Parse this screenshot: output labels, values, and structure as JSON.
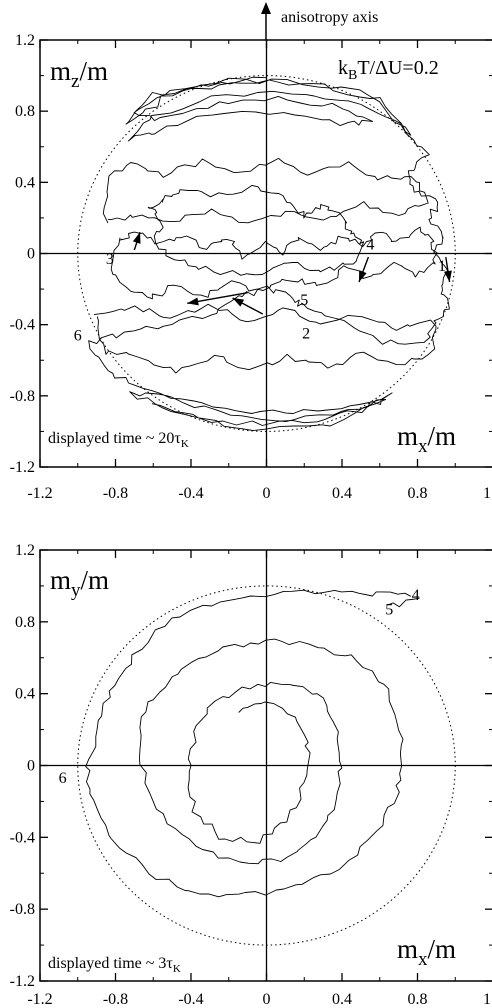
{
  "chart_data": [
    {
      "type": "line",
      "axis_label": "anisotropy axis",
      "ylabel_main": "m",
      "ylabel_sub": "z",
      "ylabel_tail": "/m",
      "xlabel_main": "m",
      "xlabel_sub": "x",
      "xlabel_tail": "/m",
      "param_k": "k",
      "param_sub": "B",
      "param_tail": "T/ΔU=0.2",
      "time_text": "displayed time ~ 20τ",
      "time_sub": "K",
      "xlim": [
        -1.2,
        1.2
      ],
      "ylim": [
        -1.2,
        1.2
      ],
      "x_ticks": [
        "-1.2",
        "-0.8",
        "-0.4",
        "0",
        "0.4",
        "0.8",
        "1.2"
      ],
      "y_ticks": [
        "1.2",
        "0.8",
        "0.4",
        "0",
        "-0.4",
        "-0.8",
        "-1.2"
      ],
      "unit_circle": "dotted, radius 1",
      "markers": [
        {
          "label": "1",
          "x": 0.93,
          "y": -0.07
        },
        {
          "label": "2",
          "x": 0.21,
          "y": -0.45
        },
        {
          "label": "3",
          "x": -0.83,
          "y": -0.03
        },
        {
          "label": "4",
          "x": 0.55,
          "y": 0.05
        },
        {
          "label": "5",
          "x": 0.2,
          "y": -0.26
        },
        {
          "label": "6",
          "x": -1.0,
          "y": -0.46
        }
      ],
      "arrows": [
        {
          "from": [
            0.95,
            -0.02
          ],
          "to": [
            0.97,
            -0.16
          ]
        },
        {
          "from": [
            0.54,
            -0.02
          ],
          "to": [
            0.49,
            -0.16
          ]
        },
        {
          "from": [
            -0.7,
            0.02
          ],
          "to": [
            -0.67,
            0.12
          ]
        },
        {
          "from": [
            -0.02,
            -0.34
          ],
          "to": [
            -0.18,
            -0.25
          ]
        },
        {
          "from": [
            -0.1,
            -0.22
          ],
          "to": [
            -0.42,
            -0.28
          ]
        }
      ],
      "trajectory": [
        [
          [
            0.0,
            0.99
          ],
          [
            -0.3,
            0.95
          ],
          [
            -0.55,
            0.87
          ],
          [
            -0.75,
            0.72
          ],
          [
            -0.6,
            0.9
          ],
          [
            -0.3,
            0.93
          ],
          [
            0.0,
            0.97
          ],
          [
            0.3,
            0.94
          ],
          [
            0.6,
            0.86
          ],
          [
            0.78,
            0.66
          ],
          [
            0.55,
            0.9
          ],
          [
            0.2,
            0.96
          ],
          [
            -0.2,
            0.97
          ],
          [
            -0.5,
            0.9
          ],
          [
            -0.7,
            0.8
          ],
          [
            -0.55,
            0.75
          ],
          [
            -0.25,
            0.85
          ],
          [
            0.05,
            0.88
          ],
          [
            0.35,
            0.83
          ],
          [
            0.55,
            0.75
          ],
          [
            0.4,
            0.72
          ],
          [
            0.1,
            0.8
          ],
          [
            -0.3,
            0.78
          ],
          [
            -0.58,
            0.68
          ],
          [
            -0.72,
            0.64
          ],
          [
            -0.6,
            0.78
          ],
          [
            -0.2,
            0.9
          ],
          [
            0.2,
            0.9
          ],
          [
            0.5,
            0.84
          ],
          [
            0.72,
            0.72
          ],
          [
            0.85,
            0.55
          ],
          [
            0.75,
            0.45
          ],
          [
            0.78,
            0.35
          ],
          [
            0.92,
            0.28
          ],
          [
            0.85,
            0.2
          ],
          [
            0.94,
            0.1
          ],
          [
            0.9,
            0.0
          ],
          [
            0.97,
            -0.1
          ],
          [
            0.92,
            -0.2
          ],
          [
            0.97,
            -0.3
          ],
          [
            0.9,
            -0.38
          ],
          [
            0.85,
            -0.5
          ],
          [
            0.6,
            -0.5
          ],
          [
            0.35,
            -0.35
          ],
          [
            0.2,
            -0.3
          ],
          [
            0.15,
            -0.25
          ],
          [
            0.0,
            -0.2
          ],
          [
            -0.15,
            -0.25
          ],
          [
            -0.3,
            -0.35
          ],
          [
            -0.55,
            -0.4
          ],
          [
            -0.75,
            -0.45
          ],
          [
            -0.95,
            -0.5
          ],
          [
            -0.85,
            -0.65
          ],
          [
            -0.7,
            -0.75
          ],
          [
            -0.45,
            -0.83
          ],
          [
            -0.15,
            -0.88
          ],
          [
            0.15,
            -0.9
          ],
          [
            0.45,
            -0.85
          ],
          [
            0.65,
            -0.8
          ],
          [
            0.5,
            -0.88
          ],
          [
            0.2,
            -0.95
          ],
          [
            -0.15,
            -0.96
          ],
          [
            -0.5,
            -0.9
          ],
          [
            -0.72,
            -0.78
          ],
          [
            -0.5,
            -0.82
          ],
          [
            -0.2,
            -0.9
          ],
          [
            0.1,
            -0.93
          ],
          [
            0.4,
            -0.9
          ],
          [
            0.62,
            -0.82
          ],
          [
            0.35,
            -0.96
          ],
          [
            0.0,
            -0.99
          ],
          [
            -0.35,
            -0.94
          ],
          [
            -0.6,
            -0.84
          ]
        ],
        [
          [
            -0.55,
            0.3
          ],
          [
            -0.45,
            0.35
          ],
          [
            -0.25,
            0.33
          ],
          [
            -0.05,
            0.38
          ],
          [
            0.12,
            0.3
          ],
          [
            0.2,
            0.2
          ],
          [
            0.3,
            0.28
          ],
          [
            0.4,
            0.2
          ],
          [
            0.45,
            0.12
          ],
          [
            0.52,
            0.05
          ],
          [
            0.45,
            -0.05
          ],
          [
            0.3,
            -0.1
          ],
          [
            0.15,
            -0.05
          ],
          [
            0.0,
            -0.1
          ],
          [
            -0.15,
            -0.12
          ],
          [
            -0.35,
            -0.08
          ],
          [
            -0.5,
            -0.02
          ],
          [
            -0.6,
            0.06
          ],
          [
            -0.55,
            0.18
          ],
          [
            -0.62,
            0.25
          ],
          [
            -0.55,
            0.3
          ]
        ],
        [
          [
            -0.78,
            0.08
          ],
          [
            -0.68,
            0.12
          ],
          [
            -0.58,
            0.05
          ],
          [
            -0.45,
            0.1
          ],
          [
            -0.32,
            0.03
          ],
          [
            -0.2,
            0.08
          ],
          [
            -0.12,
            -0.02
          ],
          [
            -0.02,
            0.06
          ],
          [
            0.08,
            0.0
          ],
          [
            0.18,
            0.08
          ],
          [
            0.3,
            0.02
          ],
          [
            0.4,
            0.1
          ],
          [
            0.5,
            0.04
          ],
          [
            0.58,
            0.12
          ],
          [
            0.7,
            0.06
          ],
          [
            0.8,
            0.15
          ],
          [
            0.88,
            0.08
          ],
          [
            0.9,
            -0.05
          ],
          [
            0.8,
            -0.12
          ],
          [
            0.68,
            -0.06
          ],
          [
            0.55,
            -0.14
          ],
          [
            0.42,
            -0.08
          ],
          [
            0.28,
            -0.18
          ],
          [
            0.12,
            -0.14
          ],
          [
            -0.02,
            -0.22
          ],
          [
            -0.18,
            -0.16
          ],
          [
            -0.32,
            -0.24
          ],
          [
            -0.48,
            -0.18
          ],
          [
            -0.62,
            -0.26
          ],
          [
            -0.75,
            -0.2
          ],
          [
            -0.82,
            -0.08
          ],
          [
            -0.78,
            0.08
          ]
        ],
        [
          [
            -0.85,
            0.18
          ],
          [
            -0.7,
            0.22
          ],
          [
            -0.5,
            0.18
          ],
          [
            -0.3,
            0.24
          ],
          [
            -0.1,
            0.16
          ],
          [
            0.1,
            0.24
          ],
          [
            0.3,
            0.18
          ],
          [
            0.5,
            0.28
          ],
          [
            0.7,
            0.2
          ],
          [
            0.85,
            0.3
          ],
          [
            0.78,
            0.44
          ],
          [
            0.6,
            0.42
          ],
          [
            0.42,
            0.5
          ],
          [
            0.22,
            0.44
          ],
          [
            0.05,
            0.52
          ],
          [
            -0.15,
            0.44
          ],
          [
            -0.35,
            0.52
          ],
          [
            -0.55,
            0.44
          ],
          [
            -0.72,
            0.52
          ],
          [
            -0.85,
            0.4
          ],
          [
            -0.85,
            0.18
          ]
        ],
        [
          [
            -0.9,
            -0.35
          ],
          [
            -0.7,
            -0.3
          ],
          [
            -0.5,
            -0.36
          ],
          [
            -0.3,
            -0.3
          ],
          [
            -0.1,
            -0.38
          ],
          [
            0.1,
            -0.32
          ],
          [
            0.3,
            -0.4
          ],
          [
            0.5,
            -0.34
          ],
          [
            0.7,
            -0.42
          ],
          [
            0.88,
            -0.36
          ],
          [
            0.9,
            -0.55
          ],
          [
            0.72,
            -0.62
          ],
          [
            0.52,
            -0.56
          ],
          [
            0.32,
            -0.64
          ],
          [
            0.12,
            -0.58
          ],
          [
            -0.08,
            -0.66
          ],
          [
            -0.28,
            -0.58
          ],
          [
            -0.48,
            -0.66
          ],
          [
            -0.68,
            -0.58
          ],
          [
            -0.86,
            -0.56
          ],
          [
            -0.9,
            -0.35
          ]
        ]
      ]
    },
    {
      "type": "line",
      "ylabel_main": "m",
      "ylabel_sub": "y",
      "ylabel_tail": "/m",
      "xlabel_main": "m",
      "xlabel_sub": "x",
      "xlabel_tail": "/m",
      "time_text": "displayed time ~ 3τ",
      "time_sub": "K",
      "xlim": [
        -1.2,
        1.2
      ],
      "ylim": [
        -1.2,
        1.2
      ],
      "x_ticks": [
        "-1.2",
        "-0.8",
        "-0.4",
        "0",
        "0.4",
        "0.8",
        "1.2"
      ],
      "y_ticks": [
        "1.2",
        "0.8",
        "0.4",
        "0",
        "-0.4",
        "-0.8",
        "-1.2"
      ],
      "unit_circle": "dotted, radius 1",
      "markers": [
        {
          "label": "4",
          "x": 0.79,
          "y": 0.95
        },
        {
          "label": "5",
          "x": 0.65,
          "y": 0.87
        },
        {
          "label": "6",
          "x": -1.08,
          "y": -0.07
        }
      ],
      "trajectory": [
        [
          [
            0.78,
            0.94
          ],
          [
            0.55,
            0.96
          ],
          [
            0.3,
            0.96
          ],
          [
            0.05,
            0.96
          ],
          [
            -0.25,
            0.92
          ],
          [
            -0.5,
            0.82
          ],
          [
            -0.7,
            0.62
          ],
          [
            -0.82,
            0.42
          ],
          [
            -0.9,
            0.2
          ],
          [
            -0.95,
            0.0
          ],
          [
            -0.92,
            -0.2
          ],
          [
            -0.82,
            -0.42
          ],
          [
            -0.62,
            -0.6
          ],
          [
            -0.4,
            -0.7
          ],
          [
            -0.15,
            -0.73
          ],
          [
            0.1,
            -0.7
          ],
          [
            0.35,
            -0.6
          ],
          [
            0.55,
            -0.42
          ],
          [
            0.68,
            -0.2
          ],
          [
            0.72,
            0.0
          ],
          [
            0.7,
            0.25
          ],
          [
            0.62,
            0.45
          ],
          [
            0.45,
            0.6
          ],
          [
            0.22,
            0.68
          ],
          [
            0.0,
            0.7
          ],
          [
            -0.22,
            0.66
          ],
          [
            -0.45,
            0.55
          ],
          [
            -0.6,
            0.38
          ],
          [
            -0.68,
            0.18
          ],
          [
            -0.65,
            -0.05
          ],
          [
            -0.55,
            -0.28
          ],
          [
            -0.38,
            -0.45
          ],
          [
            -0.15,
            -0.55
          ],
          [
            0.08,
            -0.52
          ],
          [
            0.25,
            -0.42
          ],
          [
            0.35,
            -0.25
          ],
          [
            0.4,
            0.0
          ],
          [
            0.38,
            0.2
          ],
          [
            0.3,
            0.38
          ],
          [
            0.12,
            0.46
          ],
          [
            -0.1,
            0.44
          ],
          [
            -0.28,
            0.36
          ],
          [
            -0.38,
            0.18
          ],
          [
            -0.42,
            -0.05
          ],
          [
            -0.38,
            -0.25
          ],
          [
            -0.25,
            -0.4
          ],
          [
            -0.05,
            -0.42
          ],
          [
            0.12,
            -0.3
          ],
          [
            0.2,
            -0.1
          ],
          [
            0.22,
            0.1
          ],
          [
            0.15,
            0.28
          ],
          [
            0.0,
            0.35
          ],
          [
            -0.15,
            0.3
          ]
        ],
        [
          [
            0.8,
            0.93
          ],
          [
            0.65,
            0.88
          ]
        ]
      ]
    }
  ]
}
